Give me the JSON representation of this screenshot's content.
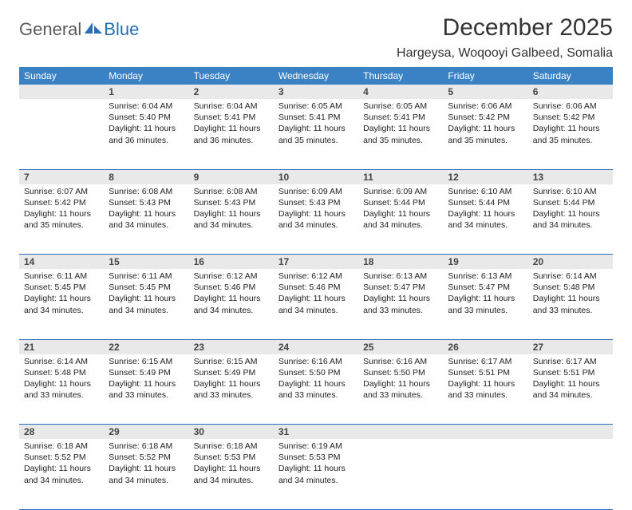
{
  "logo": {
    "general": "General",
    "blue": "Blue"
  },
  "title": "December 2025",
  "location": "Hargeysa, Woqooyi Galbeed, Somalia",
  "colors": {
    "header_bg": "#3a82c4",
    "rule": "#2a6db8",
    "daynum_bg": "#e9e9e9",
    "logo_gray": "#5a5a5a",
    "logo_blue": "#2a6db8"
  },
  "day_headers": [
    "Sunday",
    "Monday",
    "Tuesday",
    "Wednesday",
    "Thursday",
    "Friday",
    "Saturday"
  ],
  "days": [
    {
      "n": 1,
      "sr": "6:04 AM",
      "ss": "5:40 PM",
      "dl": "11 hours and 36 minutes."
    },
    {
      "n": 2,
      "sr": "6:04 AM",
      "ss": "5:41 PM",
      "dl": "11 hours and 36 minutes."
    },
    {
      "n": 3,
      "sr": "6:05 AM",
      "ss": "5:41 PM",
      "dl": "11 hours and 35 minutes."
    },
    {
      "n": 4,
      "sr": "6:05 AM",
      "ss": "5:41 PM",
      "dl": "11 hours and 35 minutes."
    },
    {
      "n": 5,
      "sr": "6:06 AM",
      "ss": "5:42 PM",
      "dl": "11 hours and 35 minutes."
    },
    {
      "n": 6,
      "sr": "6:06 AM",
      "ss": "5:42 PM",
      "dl": "11 hours and 35 minutes."
    },
    {
      "n": 7,
      "sr": "6:07 AM",
      "ss": "5:42 PM",
      "dl": "11 hours and 35 minutes."
    },
    {
      "n": 8,
      "sr": "6:08 AM",
      "ss": "5:43 PM",
      "dl": "11 hours and 34 minutes."
    },
    {
      "n": 9,
      "sr": "6:08 AM",
      "ss": "5:43 PM",
      "dl": "11 hours and 34 minutes."
    },
    {
      "n": 10,
      "sr": "6:09 AM",
      "ss": "5:43 PM",
      "dl": "11 hours and 34 minutes."
    },
    {
      "n": 11,
      "sr": "6:09 AM",
      "ss": "5:44 PM",
      "dl": "11 hours and 34 minutes."
    },
    {
      "n": 12,
      "sr": "6:10 AM",
      "ss": "5:44 PM",
      "dl": "11 hours and 34 minutes."
    },
    {
      "n": 13,
      "sr": "6:10 AM",
      "ss": "5:44 PM",
      "dl": "11 hours and 34 minutes."
    },
    {
      "n": 14,
      "sr": "6:11 AM",
      "ss": "5:45 PM",
      "dl": "11 hours and 34 minutes."
    },
    {
      "n": 15,
      "sr": "6:11 AM",
      "ss": "5:45 PM",
      "dl": "11 hours and 34 minutes."
    },
    {
      "n": 16,
      "sr": "6:12 AM",
      "ss": "5:46 PM",
      "dl": "11 hours and 34 minutes."
    },
    {
      "n": 17,
      "sr": "6:12 AM",
      "ss": "5:46 PM",
      "dl": "11 hours and 34 minutes."
    },
    {
      "n": 18,
      "sr": "6:13 AM",
      "ss": "5:47 PM",
      "dl": "11 hours and 33 minutes."
    },
    {
      "n": 19,
      "sr": "6:13 AM",
      "ss": "5:47 PM",
      "dl": "11 hours and 33 minutes."
    },
    {
      "n": 20,
      "sr": "6:14 AM",
      "ss": "5:48 PM",
      "dl": "11 hours and 33 minutes."
    },
    {
      "n": 21,
      "sr": "6:14 AM",
      "ss": "5:48 PM",
      "dl": "11 hours and 33 minutes."
    },
    {
      "n": 22,
      "sr": "6:15 AM",
      "ss": "5:49 PM",
      "dl": "11 hours and 33 minutes."
    },
    {
      "n": 23,
      "sr": "6:15 AM",
      "ss": "5:49 PM",
      "dl": "11 hours and 33 minutes."
    },
    {
      "n": 24,
      "sr": "6:16 AM",
      "ss": "5:50 PM",
      "dl": "11 hours and 33 minutes."
    },
    {
      "n": 25,
      "sr": "6:16 AM",
      "ss": "5:50 PM",
      "dl": "11 hours and 33 minutes."
    },
    {
      "n": 26,
      "sr": "6:17 AM",
      "ss": "5:51 PM",
      "dl": "11 hours and 33 minutes."
    },
    {
      "n": 27,
      "sr": "6:17 AM",
      "ss": "5:51 PM",
      "dl": "11 hours and 34 minutes."
    },
    {
      "n": 28,
      "sr": "6:18 AM",
      "ss": "5:52 PM",
      "dl": "11 hours and 34 minutes."
    },
    {
      "n": 29,
      "sr": "6:18 AM",
      "ss": "5:52 PM",
      "dl": "11 hours and 34 minutes."
    },
    {
      "n": 30,
      "sr": "6:18 AM",
      "ss": "5:53 PM",
      "dl": "11 hours and 34 minutes."
    },
    {
      "n": 31,
      "sr": "6:19 AM",
      "ss": "5:53 PM",
      "dl": "11 hours and 34 minutes."
    }
  ],
  "labels": {
    "sunrise": "Sunrise:",
    "sunset": "Sunset:",
    "daylight": "Daylight:"
  },
  "first_weekday_offset": 1
}
